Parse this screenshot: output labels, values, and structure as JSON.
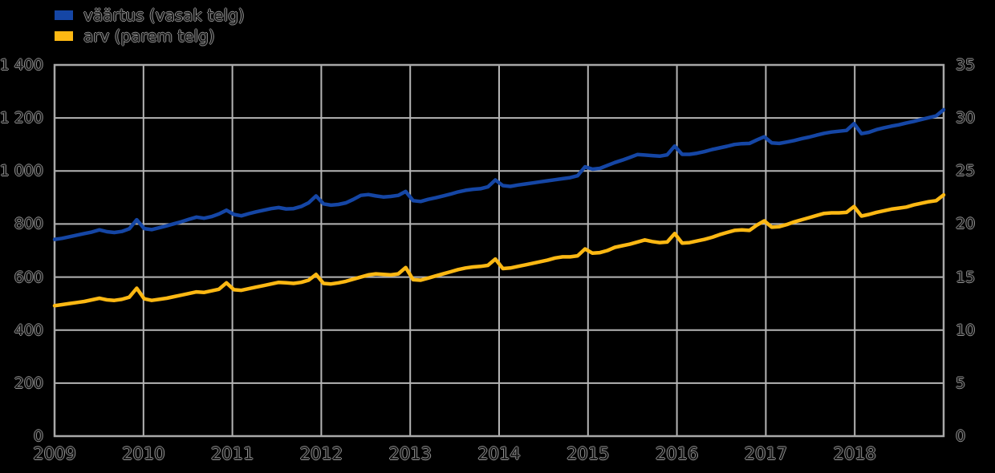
{
  "background_color": "#000000",
  "grid_color": "#b5b5b5",
  "border_color": "#a8a8a8",
  "text_outline_color": "#8f8f8f",
  "legend": {
    "items": [
      {
        "label": "väärtus (vasak telg)",
        "color": "#1546a5"
      },
      {
        "label": "arv (parem telg)",
        "color": "#fcb813"
      }
    ]
  },
  "chart_data": {
    "type": "line",
    "title": "",
    "xlabel": "",
    "ylabel_left": "",
    "ylabel_right": "",
    "grid": true,
    "legend_position": "top-left",
    "x_frequency": "monthly Jan 2009 - Dec 2018",
    "x_tick_labels": [
      "2009",
      "2010",
      "2011",
      "2012",
      "2013",
      "2014",
      "2015",
      "2016",
      "2017",
      "2018"
    ],
    "left_axis": {
      "min": 0,
      "max": 1400,
      "step": 200,
      "tick_labels": [
        "0",
        "200",
        "400",
        "600",
        "800",
        "1 000",
        "1 200",
        "1 400"
      ]
    },
    "right_axis": {
      "min": 0,
      "max": 35,
      "step": 5,
      "tick_labels": [
        "0",
        "5",
        "10",
        "15",
        "20",
        "25",
        "30",
        "35"
      ]
    },
    "series": [
      {
        "name": "väärtus (vasak telg)",
        "axis": "left",
        "color": "#1546a5",
        "values": [
          742,
          746,
          752,
          758,
          764,
          770,
          778,
          771,
          768,
          772,
          782,
          816,
          783,
          779,
          786,
          793,
          801,
          809,
          818,
          826,
          822,
          828,
          838,
          852,
          836,
          831,
          839,
          846,
          852,
          858,
          862,
          857,
          858,
          866,
          880,
          906,
          876,
          871,
          874,
          880,
          893,
          908,
          911,
          906,
          902,
          904,
          908,
          923,
          888,
          885,
          893,
          899,
          906,
          913,
          921,
          927,
          931,
          933,
          940,
          966,
          945,
          942,
          947,
          951,
          955,
          959,
          963,
          967,
          971,
          975,
          982,
          1016,
          1007,
          1010,
          1021,
          1032,
          1041,
          1051,
          1062,
          1060,
          1058,
          1056,
          1061,
          1094,
          1063,
          1063,
          1067,
          1073,
          1081,
          1087,
          1093,
          1100,
          1103,
          1104,
          1117,
          1129,
          1106,
          1104,
          1109,
          1115,
          1122,
          1128,
          1135,
          1142,
          1147,
          1150,
          1153,
          1179,
          1141,
          1146,
          1156,
          1163,
          1169,
          1174,
          1181,
          1187,
          1194,
          1201,
          1208,
          1231
        ]
      },
      {
        "name": "arv (parem telg)",
        "axis": "right",
        "color": "#fcb813",
        "values": [
          12.3,
          12.4,
          12.5,
          12.6,
          12.7,
          12.85,
          13.0,
          12.85,
          12.8,
          12.9,
          13.1,
          13.95,
          12.95,
          12.8,
          12.9,
          13.0,
          13.15,
          13.3,
          13.45,
          13.6,
          13.55,
          13.7,
          13.85,
          14.45,
          13.8,
          13.75,
          13.9,
          14.05,
          14.2,
          14.35,
          14.5,
          14.45,
          14.4,
          14.5,
          14.7,
          15.25,
          14.4,
          14.35,
          14.45,
          14.6,
          14.8,
          15.0,
          15.2,
          15.3,
          15.25,
          15.2,
          15.3,
          15.9,
          14.75,
          14.7,
          14.9,
          15.1,
          15.3,
          15.5,
          15.7,
          15.85,
          15.95,
          16.0,
          16.1,
          16.7,
          15.8,
          15.85,
          16.0,
          16.15,
          16.3,
          16.45,
          16.6,
          16.8,
          16.9,
          16.9,
          17.0,
          17.65,
          17.25,
          17.3,
          17.5,
          17.8,
          17.95,
          18.1,
          18.3,
          18.5,
          18.35,
          18.25,
          18.3,
          19.1,
          18.2,
          18.25,
          18.4,
          18.55,
          18.75,
          19.0,
          19.2,
          19.4,
          19.45,
          19.4,
          19.9,
          20.3,
          19.7,
          19.75,
          19.95,
          20.2,
          20.4,
          20.6,
          20.8,
          21.0,
          21.05,
          21.05,
          21.1,
          21.65,
          20.75,
          20.9,
          21.1,
          21.25,
          21.4,
          21.5,
          21.6,
          21.8,
          21.95,
          22.1,
          22.2,
          22.75
        ]
      }
    ]
  }
}
